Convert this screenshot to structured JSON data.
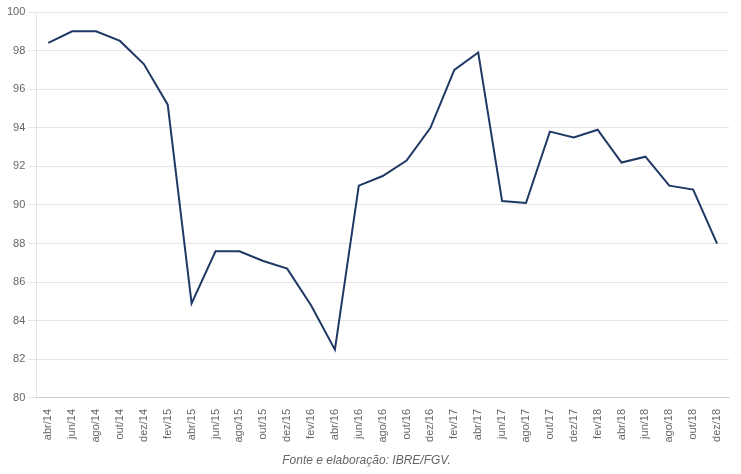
{
  "chart_data": {
    "type": "line",
    "source": "Fonte e elaboração: IBRE/FGV.",
    "categories": [
      "abr/14",
      "jun/14",
      "ago/14",
      "out/14",
      "dez/14",
      "fev/15",
      "abr/15",
      "jun/15",
      "ago/15",
      "out/15",
      "dez/15",
      "fev/16",
      "abr/16",
      "jun/16",
      "ago/16",
      "out/16",
      "dez/16",
      "fev/17",
      "abr/17",
      "jun/17",
      "ago/17",
      "out/17",
      "dez/17",
      "fev/18",
      "abr/18",
      "jun/18",
      "ago/18",
      "out/18",
      "dez/18"
    ],
    "values": [
      98.4,
      99.0,
      99.0,
      98.5,
      97.3,
      95.2,
      84.9,
      87.6,
      87.6,
      87.1,
      86.7,
      84.8,
      82.5,
      91.0,
      91.5,
      92.3,
      94.0,
      97.0,
      97.9,
      90.2,
      90.1,
      93.8,
      93.5,
      93.9,
      92.2,
      92.5,
      91.0,
      90.8,
      88.0
    ],
    "color": "#1F3864",
    "ylim": [
      80,
      100
    ],
    "yticks": [
      80,
      82,
      84,
      86,
      88,
      90,
      92,
      94,
      96,
      98,
      100
    ],
    "grid": true
  }
}
